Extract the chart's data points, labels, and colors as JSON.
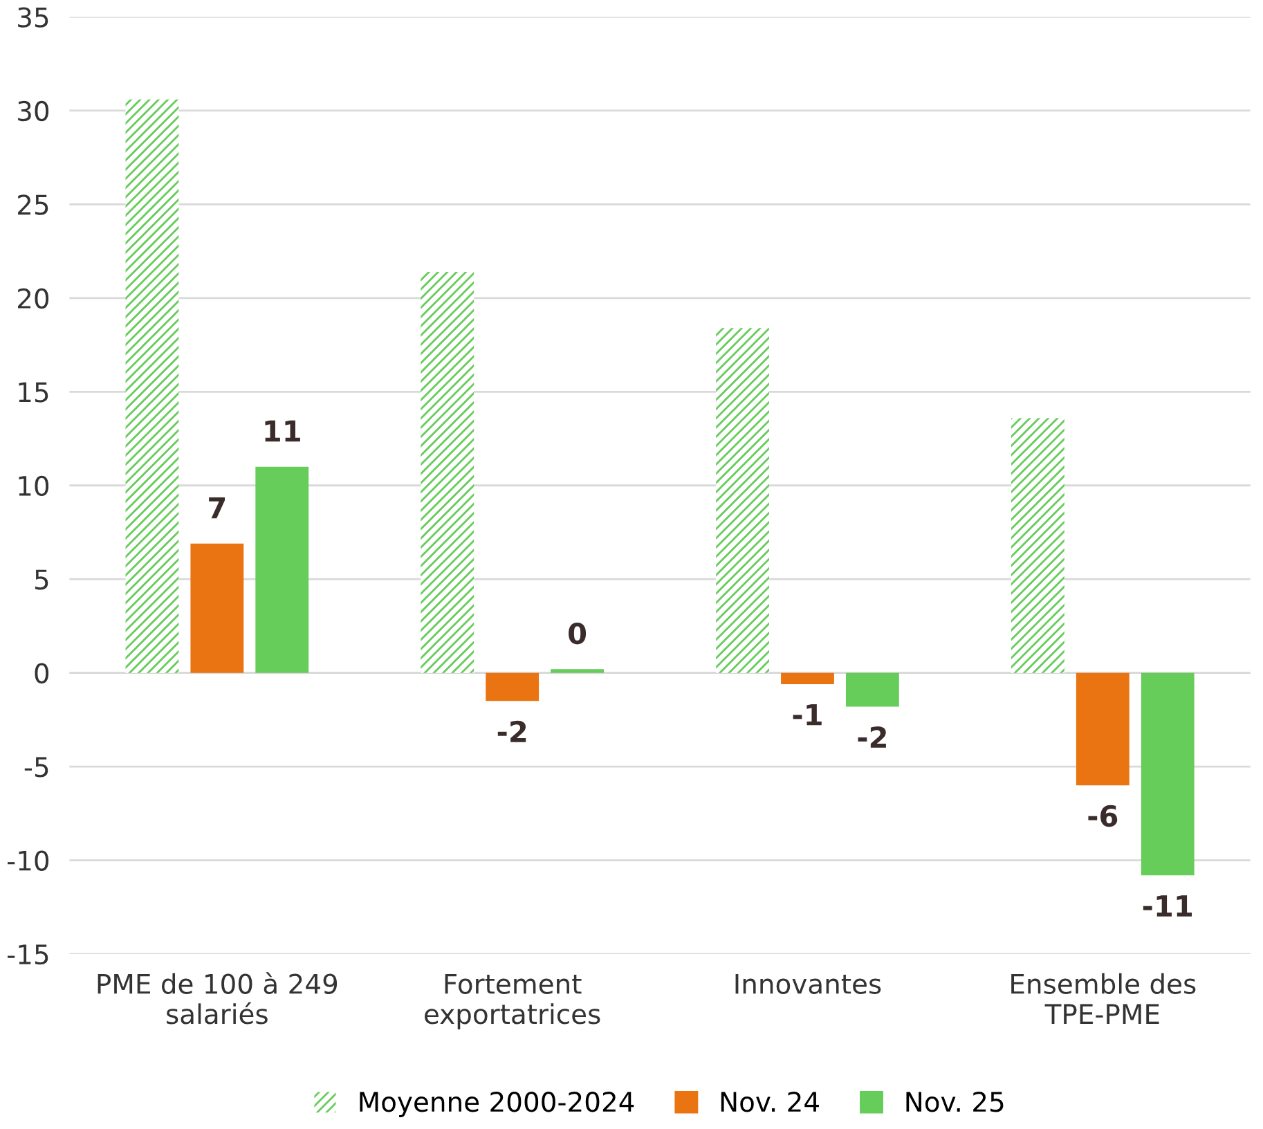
{
  "chart_data": {
    "type": "bar",
    "categories": [
      "PME de 100 à 249\nsalariés",
      "Fortement\nexportatrices",
      "Innovantes",
      "Ensemble des\nTPE-PME"
    ],
    "series": [
      {
        "name": "Moyenne 2000-2024",
        "color": "#66cc5a",
        "values": [
          30.6,
          21.4,
          18.4,
          13.6
        ]
      },
      {
        "name": "Nov. 24",
        "color": "#ea7412",
        "values": [
          6.9,
          -1.5,
          -0.6,
          -6.0
        ],
        "value_labels": [
          "7",
          "-2",
          "-1",
          "-6"
        ]
      },
      {
        "name": "Nov. 25",
        "color": "#66cc5a",
        "values": [
          11.0,
          0.2,
          -1.8,
          -10.8
        ],
        "value_labels": [
          "11",
          "0",
          "-2",
          "-11"
        ]
      }
    ],
    "ylim": [
      -15,
      35
    ],
    "yticks": [
      -15,
      -10,
      -5,
      0,
      5,
      10,
      15,
      20,
      25,
      30,
      35
    ],
    "grid": "y",
    "legend": "bottom"
  }
}
